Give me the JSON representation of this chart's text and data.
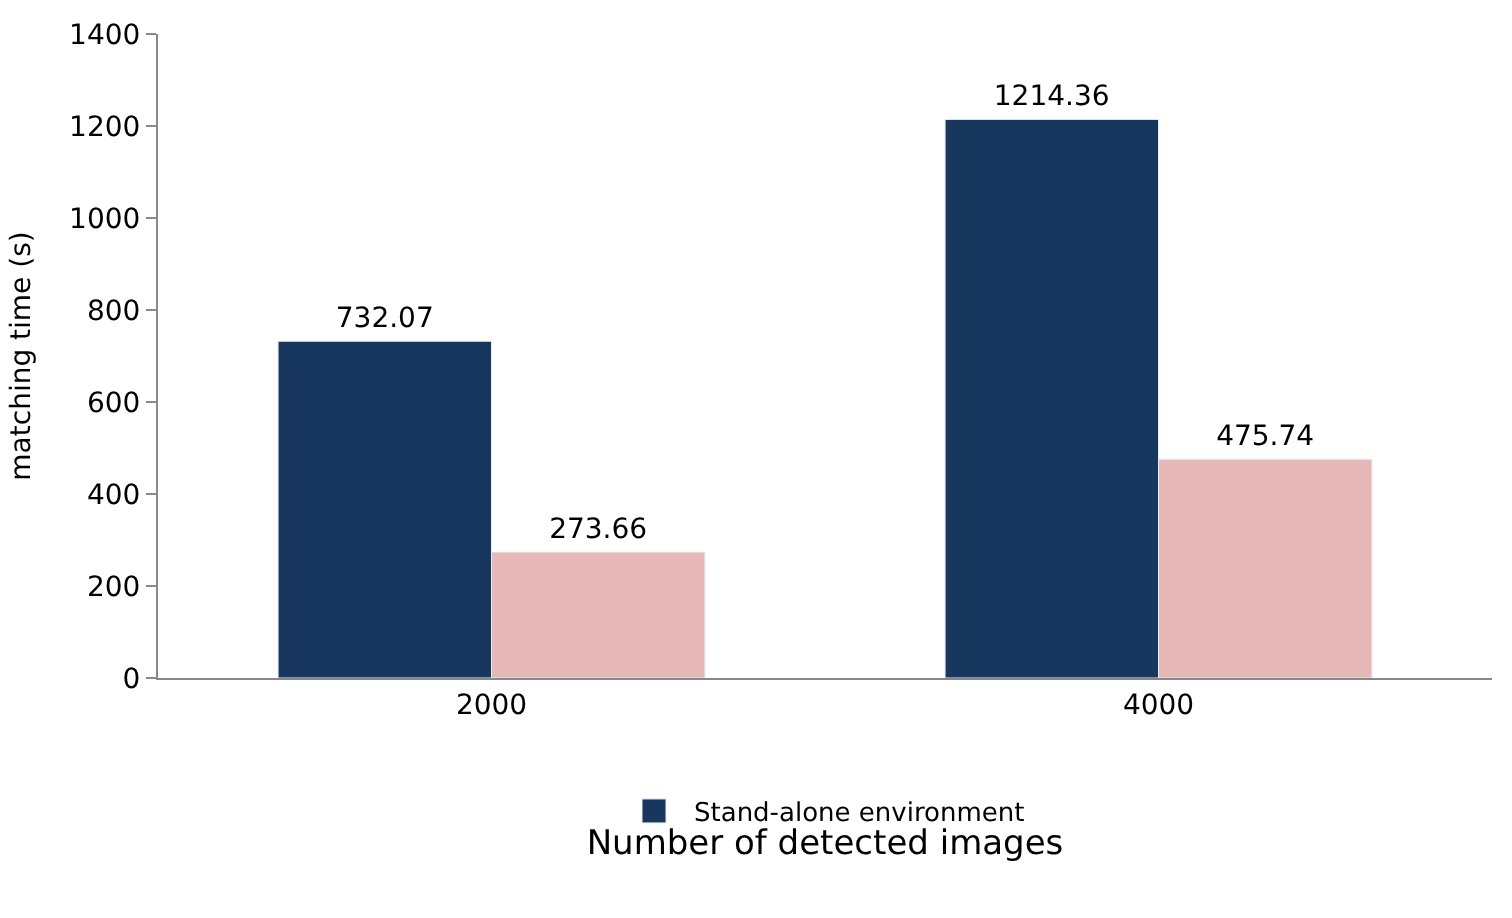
{
  "chart_data": {
    "type": "bar",
    "categories": [
      "2000",
      "4000"
    ],
    "xlabel": "Number of detected images",
    "ylabel": "matching time (s)",
    "ylim": [
      0,
      1400
    ],
    "yticks": [
      0,
      200,
      400,
      600,
      800,
      1000,
      1200,
      1400
    ],
    "grid": false,
    "legend": "bottom",
    "data_labels": true,
    "series": [
      {
        "name": "Stand-alone environment",
        "color": "#17375e",
        "values": [
          732.07,
          1214.36
        ]
      },
      {
        "color": "#e6b9b8",
        "values": [
          273.66,
          475.74
        ]
      }
    ]
  }
}
